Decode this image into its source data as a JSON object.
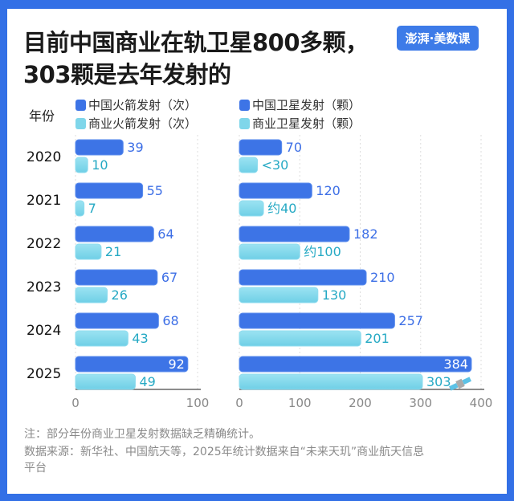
{
  "title_line1": "目前中国商业在轨卫星800多颗，",
  "title_line2": "303颗是去年发射的",
  "logo": "澎湃·美数课",
  "year_header": "年份",
  "colors": {
    "china": "#3d74e6",
    "commercial": "#7fd6ea",
    "china_label": "#3d6fe6",
    "commercial_label": "#25a9c4",
    "frame": "#3370e6"
  },
  "legend": [
    "中国火箭发射（次）",
    "商业火箭发射（次）",
    "中国卫星发射（颗）",
    "商业卫星发射（颗）"
  ],
  "chart_data": [
    {
      "type": "bar",
      "orientation": "horizontal",
      "categories": [
        "2020",
        "2021",
        "2022",
        "2023",
        "2024",
        "2025"
      ],
      "xlim": [
        0,
        100
      ],
      "xticks": [
        "0",
        "100"
      ],
      "series": [
        {
          "name": "中国火箭发射（次）",
          "values": [
            39,
            55,
            64,
            67,
            68,
            92
          ],
          "labels": [
            "39",
            "55",
            "64",
            "67",
            "68",
            "92"
          ]
        },
        {
          "name": "商业火箭发射（次）",
          "values": [
            10,
            7,
            21,
            26,
            43,
            49
          ],
          "labels": [
            "10",
            "7",
            "21",
            "26",
            "43",
            "49"
          ]
        }
      ]
    },
    {
      "type": "bar",
      "orientation": "horizontal",
      "categories": [
        "2020",
        "2021",
        "2022",
        "2023",
        "2024",
        "2025"
      ],
      "xlim": [
        0,
        400
      ],
      "xticks": [
        "0",
        "100",
        "200",
        "300",
        "400"
      ],
      "series": [
        {
          "name": "中国卫星发射（颗）",
          "values": [
            70,
            120,
            182,
            210,
            257,
            384
          ],
          "labels": [
            "70",
            "120",
            "182",
            "210",
            "257",
            "384"
          ]
        },
        {
          "name": "商业卫星发射（颗）",
          "values": [
            30,
            40,
            100,
            130,
            201,
            303
          ],
          "labels": [
            "<30",
            "约40",
            "约100",
            "130",
            "201",
            "303"
          ]
        }
      ]
    }
  ],
  "notes": [
    "注：部分年份商业卫星发射数据缺乏精确统计。",
    "数据来源：新华社、中国航天等，2025年统计数据来自“未来天玑”商业航天信息",
    "平台"
  ]
}
